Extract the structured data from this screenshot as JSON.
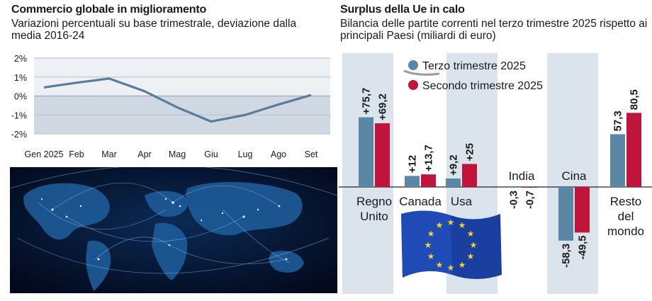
{
  "chart_data": [
    {
      "type": "line",
      "title": "Commercio globale in miglioramento",
      "subtitle": "Variazioni percentuali su base trimestrale, deviazione dalla media 2016-24",
      "categories": [
        "Gen 2025",
        "Feb",
        "Mar",
        "Apr",
        "Mag",
        "Giu",
        "Lug",
        "Ago",
        "Set"
      ],
      "values": [
        0.45,
        0.7,
        0.92,
        0.25,
        -0.6,
        -1.35,
        -1.0,
        -0.45,
        0.05
      ],
      "ylim": [
        -2,
        2
      ],
      "yticks": [
        "2%",
        "1%",
        "0%",
        "-1%",
        "-2%"
      ],
      "ytick_values": [
        2,
        1,
        0,
        -1,
        -2
      ],
      "grid": true,
      "colors": {
        "line": "#5a7d9c",
        "negative_band": "#cfd8e3",
        "plot_bg": "#eef1f4"
      }
    },
    {
      "type": "bar",
      "title": "Surplus della Ue in calo",
      "subtitle": "Bilancia delle partite correnti nel terzo trimestre 2025 rispetto ai principali Paesi (miliardi di euro)",
      "categories": [
        [
          "Regno",
          "Unito"
        ],
        [
          "Canada"
        ],
        [
          "Usa"
        ],
        [
          "India"
        ],
        [
          "Cina"
        ],
        [
          "Resto",
          "del",
          "mondo"
        ]
      ],
      "series": [
        {
          "name": "Terzo trimestre 2025",
          "color": "#5b86a6",
          "values": [
            75.7,
            12,
            9.2,
            -0.3,
            -58.3,
            57.3
          ],
          "labels": [
            "+75,7",
            "+12",
            "+9,2",
            "-0,3",
            "-58,3",
            "57,3"
          ]
        },
        {
          "name": "Secondo trimestre 2025",
          "color": "#c0143c",
          "values": [
            69.2,
            13.7,
            25,
            -0.7,
            -49.5,
            80.5
          ],
          "labels": [
            "+69,2",
            "+13,7",
            "+25",
            "-0,7",
            "-49,5",
            "80,5"
          ]
        }
      ],
      "legend_position": "top-center",
      "colors": {
        "column_band": "#dbe3ec"
      }
    }
  ]
}
